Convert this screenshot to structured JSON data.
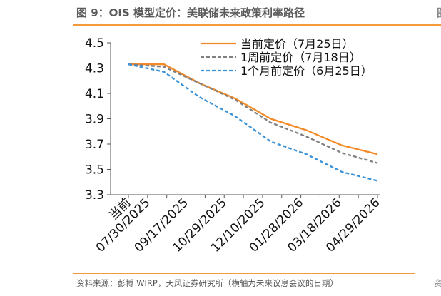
{
  "figure": {
    "title": "图 9：OIS 模型定价：美联储未来政策利率路径",
    "source": "资料来源：彭博 WIRP，天风证券研究所（横轴为未来议息会议的日期）",
    "next_figure_title_fragment": "图",
    "next_figure_source_fragment": "资"
  },
  "colors": {
    "accent": "#f39a3c",
    "current": "#f28a28",
    "week_ago": "#808080",
    "month_ago": "#3a92d8"
  },
  "chart_data": {
    "type": "line",
    "categories": [
      "当前",
      "07/30/2025",
      "09/17/2025",
      "10/29/2025",
      "12/10/2025",
      "01/28/2026",
      "03/18/2026",
      "04/29/2026"
    ],
    "x_points": [
      "当前",
      "07/30/2025",
      "",
      "09/17/2025",
      "",
      "10/29/2025",
      "",
      "12/10/2025",
      "",
      "01/28/2026",
      "",
      "03/18/2026",
      "",
      "04/29/2026"
    ],
    "series": [
      {
        "name": "当前定价（7月25日）",
        "style": "solid",
        "color": "#f28a28",
        "values": [
          4.33,
          4.33,
          4.18,
          4.06,
          3.9,
          3.81,
          3.69,
          3.62
        ]
      },
      {
        "name": "1周前定价（7月18日）",
        "style": "dashed",
        "color": "#808080",
        "values": [
          4.33,
          4.31,
          4.18,
          4.05,
          3.87,
          3.76,
          3.63,
          3.55
        ]
      },
      {
        "name": "1个月前定价（6月25日）",
        "style": "dashed",
        "color": "#3a92d8",
        "values": [
          4.33,
          4.27,
          4.07,
          3.92,
          3.72,
          3.62,
          3.48,
          3.41
        ]
      }
    ],
    "yticks": [
      "4.5",
      "4.3",
      "4.1",
      "3.9",
      "3.7",
      "3.5",
      "3.3"
    ],
    "ylim": [
      3.3,
      4.5
    ],
    "grid": false,
    "legend_position": "top-right"
  }
}
